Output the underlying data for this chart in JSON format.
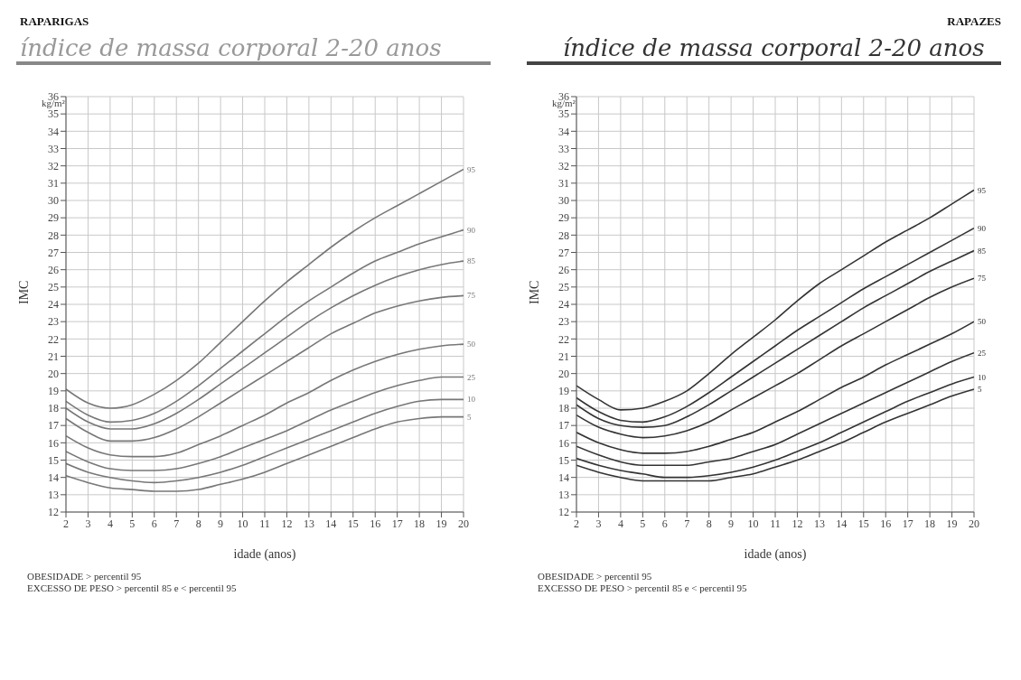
{
  "chart_data": [
    {
      "type": "line",
      "subtitle": "RAPARIGAS",
      "title": "índice de massa corporal 2-20 anos",
      "xlabel": "idade (anos)",
      "ylabel": "IMC",
      "annotations": [
        "kg/m²",
        "OBESIDADE > percentil 95",
        "EXCESSO DE PESO > percentil 85 e < percentil 95"
      ],
      "x": [
        2,
        3,
        4,
        5,
        6,
        7,
        8,
        9,
        10,
        11,
        12,
        13,
        14,
        15,
        16,
        17,
        18,
        19,
        20
      ],
      "xlim": [
        2,
        20
      ],
      "xticks": [
        2,
        3,
        4,
        5,
        6,
        7,
        8,
        9,
        10,
        11,
        12,
        13,
        14,
        15,
        16,
        17,
        18,
        19,
        20
      ],
      "ylim": [
        12,
        36
      ],
      "yticks": [
        12,
        13,
        14,
        15,
        16,
        17,
        18,
        19,
        20,
        21,
        22,
        23,
        24,
        25,
        26,
        27,
        28,
        29,
        30,
        31,
        32,
        33,
        34,
        35,
        36
      ],
      "grid": true,
      "legend": false,
      "marker": "none",
      "line_style": "solid",
      "series": [
        {
          "name": "95",
          "color": "#777777",
          "values": [
            19.1,
            18.3,
            18.0,
            18.2,
            18.8,
            19.6,
            20.6,
            21.8,
            23.0,
            24.2,
            25.3,
            26.3,
            27.3,
            28.2,
            29.0,
            29.7,
            30.4,
            31.1,
            31.8
          ]
        },
        {
          "name": "90",
          "color": "#777777",
          "values": [
            18.4,
            17.6,
            17.2,
            17.3,
            17.7,
            18.4,
            19.3,
            20.3,
            21.3,
            22.3,
            23.3,
            24.2,
            25.0,
            25.8,
            26.5,
            27.0,
            27.5,
            27.9,
            28.3
          ]
        },
        {
          "name": "85",
          "color": "#777777",
          "values": [
            18.0,
            17.2,
            16.8,
            16.8,
            17.1,
            17.7,
            18.5,
            19.4,
            20.3,
            21.2,
            22.1,
            23.0,
            23.8,
            24.5,
            25.1,
            25.6,
            26.0,
            26.3,
            26.5
          ]
        },
        {
          "name": "75",
          "color": "#777777",
          "values": [
            17.4,
            16.6,
            16.1,
            16.1,
            16.3,
            16.8,
            17.5,
            18.3,
            19.1,
            19.9,
            20.7,
            21.5,
            22.3,
            22.9,
            23.5,
            23.9,
            24.2,
            24.4,
            24.5
          ]
        },
        {
          "name": "50",
          "color": "#777777",
          "values": [
            16.4,
            15.7,
            15.3,
            15.2,
            15.2,
            15.4,
            15.9,
            16.4,
            17.0,
            17.6,
            18.3,
            18.9,
            19.6,
            20.2,
            20.7,
            21.1,
            21.4,
            21.6,
            21.7
          ]
        },
        {
          "name": "25",
          "color": "#777777",
          "values": [
            15.5,
            14.9,
            14.5,
            14.4,
            14.4,
            14.5,
            14.8,
            15.2,
            15.7,
            16.2,
            16.7,
            17.3,
            17.9,
            18.4,
            18.9,
            19.3,
            19.6,
            19.8,
            19.8
          ]
        },
        {
          "name": "10",
          "color": "#777777",
          "values": [
            14.8,
            14.3,
            14.0,
            13.8,
            13.7,
            13.8,
            14.0,
            14.3,
            14.7,
            15.2,
            15.7,
            16.2,
            16.7,
            17.2,
            17.7,
            18.1,
            18.4,
            18.5,
            18.5
          ]
        },
        {
          "name": "5",
          "color": "#777777",
          "values": [
            14.1,
            13.7,
            13.4,
            13.3,
            13.2,
            13.2,
            13.3,
            13.6,
            13.9,
            14.3,
            14.8,
            15.3,
            15.8,
            16.3,
            16.8,
            17.2,
            17.4,
            17.5,
            17.5
          ]
        }
      ]
    },
    {
      "type": "line",
      "subtitle": "RAPAZES",
      "title": "índice de massa corporal 2-20 anos",
      "xlabel": "idade (anos)",
      "ylabel": "IMC",
      "annotations": [
        "kg/m²",
        "OBESIDADE > percentil 95",
        "EXCESSO DE PESO > percentil 85 e < percentil 95"
      ],
      "x": [
        2,
        3,
        4,
        5,
        6,
        7,
        8,
        9,
        10,
        11,
        12,
        13,
        14,
        15,
        16,
        17,
        18,
        19,
        20
      ],
      "xlim": [
        2,
        20
      ],
      "xticks": [
        2,
        3,
        4,
        5,
        6,
        7,
        8,
        9,
        10,
        11,
        12,
        13,
        14,
        15,
        16,
        17,
        18,
        19,
        20
      ],
      "ylim": [
        12,
        36
      ],
      "yticks": [
        12,
        13,
        14,
        15,
        16,
        17,
        18,
        19,
        20,
        21,
        22,
        23,
        24,
        25,
        26,
        27,
        28,
        29,
        30,
        31,
        32,
        33,
        34,
        35,
        36
      ],
      "grid": true,
      "legend": false,
      "marker": "none",
      "line_style": "solid",
      "series": [
        {
          "name": "95",
          "color": "#333333",
          "values": [
            19.3,
            18.5,
            17.9,
            18.0,
            18.4,
            19.0,
            20.0,
            21.1,
            22.1,
            23.1,
            24.2,
            25.2,
            26.0,
            26.8,
            27.6,
            28.3,
            29.0,
            29.8,
            30.6
          ]
        },
        {
          "name": "90",
          "color": "#333333",
          "values": [
            18.6,
            17.8,
            17.3,
            17.2,
            17.5,
            18.1,
            18.9,
            19.8,
            20.7,
            21.6,
            22.5,
            23.3,
            24.1,
            24.9,
            25.6,
            26.3,
            27.0,
            27.7,
            28.4
          ]
        },
        {
          "name": "85",
          "color": "#333333",
          "values": [
            18.2,
            17.4,
            17.0,
            16.9,
            17.0,
            17.5,
            18.2,
            19.0,
            19.8,
            20.6,
            21.4,
            22.2,
            23.0,
            23.8,
            24.5,
            25.2,
            25.9,
            26.5,
            27.1
          ]
        },
        {
          "name": "75",
          "color": "#333333",
          "values": [
            17.6,
            16.9,
            16.5,
            16.3,
            16.4,
            16.7,
            17.2,
            17.9,
            18.6,
            19.3,
            20.0,
            20.8,
            21.6,
            22.3,
            23.0,
            23.7,
            24.4,
            25.0,
            25.5
          ]
        },
        {
          "name": "50",
          "color": "#333333",
          "values": [
            16.6,
            16.0,
            15.6,
            15.4,
            15.4,
            15.5,
            15.8,
            16.2,
            16.6,
            17.2,
            17.8,
            18.5,
            19.2,
            19.8,
            20.5,
            21.1,
            21.7,
            22.3,
            23.0
          ]
        },
        {
          "name": "25",
          "color": "#333333",
          "values": [
            15.8,
            15.3,
            14.9,
            14.7,
            14.7,
            14.7,
            14.9,
            15.1,
            15.5,
            15.9,
            16.5,
            17.1,
            17.7,
            18.3,
            18.9,
            19.5,
            20.1,
            20.7,
            21.2
          ]
        },
        {
          "name": "10",
          "color": "#333333",
          "values": [
            15.1,
            14.7,
            14.4,
            14.2,
            14.0,
            14.0,
            14.1,
            14.3,
            14.6,
            15.0,
            15.5,
            16.0,
            16.6,
            17.2,
            17.8,
            18.4,
            18.9,
            19.4,
            19.8
          ]
        },
        {
          "name": "5",
          "color": "#333333",
          "values": [
            14.7,
            14.3,
            14.0,
            13.8,
            13.8,
            13.8,
            13.8,
            14.0,
            14.2,
            14.6,
            15.0,
            15.5,
            16.0,
            16.6,
            17.2,
            17.7,
            18.2,
            18.7,
            19.1
          ]
        }
      ]
    }
  ]
}
